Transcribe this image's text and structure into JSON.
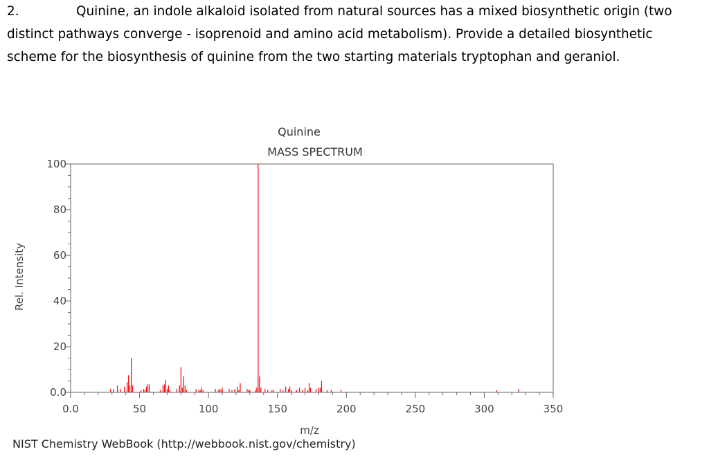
{
  "question": {
    "number": "2.",
    "line1": "Quinine, an indole alkaloid isolated from natural sources has a mixed biosynthetic origin (two",
    "line2": "distinct pathways converge - isoprenoid and amino acid metabolism). Provide a detailed biosynthetic",
    "line3": "scheme for the biosynthesis of quinine from the two starting materials tryptophan and geraniol."
  },
  "colors": {
    "peak": "#ff0000",
    "axis": "#666666"
  },
  "chart_data": {
    "type": "bar",
    "title": "Quinine",
    "subtitle": "MASS SPECTRUM",
    "xlabel": "m/z",
    "ylabel": "Rel. Intensity",
    "credit": "NIST Chemistry WebBook (http://webbook.nist.gov/chemistry)",
    "xlim": [
      0,
      350
    ],
    "ylim": [
      0,
      100
    ],
    "x_ticks": [
      "0.0",
      "50",
      "100",
      "150",
      "200",
      "250",
      "300",
      "350"
    ],
    "y_ticks": [
      "0.0",
      "20",
      "40",
      "60",
      "80",
      "100"
    ],
    "x_tick_values": [
      0,
      50,
      100,
      150,
      200,
      250,
      300,
      350
    ],
    "y_tick_values": [
      0,
      20,
      40,
      60,
      80,
      100
    ],
    "x": [
      29,
      31,
      34,
      36,
      39,
      41,
      42,
      43,
      44,
      45,
      51,
      53,
      54,
      55,
      56,
      57,
      65,
      67,
      68,
      69,
      70,
      71,
      72,
      77,
      79,
      80,
      81,
      82,
      83,
      84,
      91,
      93,
      94,
      95,
      96,
      105,
      107,
      108,
      109,
      110,
      115,
      117,
      119,
      121,
      122,
      123,
      128,
      129,
      130,
      134,
      135,
      136,
      137,
      138,
      141,
      143,
      146,
      147,
      152,
      154,
      156,
      158,
      159,
      160,
      164,
      166,
      168,
      170,
      172,
      173,
      174,
      178,
      180,
      181,
      182,
      186,
      189,
      196,
      309,
      325
    ],
    "values": [
      1.5,
      1.5,
      3.0,
      1.5,
      2.5,
      4.5,
      7.5,
      3.0,
      15.0,
      3.0,
      1.0,
      1.5,
      1.0,
      2.5,
      3.5,
      3.5,
      1.0,
      3.0,
      3.5,
      5.5,
      1.5,
      3.0,
      1.0,
      1.5,
      3.0,
      11.0,
      2.0,
      7.0,
      3.0,
      1.0,
      1.5,
      1.0,
      1.0,
      2.0,
      1.0,
      1.5,
      1.0,
      1.5,
      1.0,
      2.0,
      1.5,
      1.0,
      1.5,
      2.5,
      1.0,
      4.0,
      1.5,
      1.0,
      1.0,
      1.0,
      2.0,
      100.0,
      7.0,
      2.0,
      1.5,
      1.0,
      1.0,
      1.0,
      1.5,
      1.0,
      2.5,
      1.5,
      2.5,
      1.0,
      1.0,
      2.0,
      1.0,
      2.0,
      1.0,
      4.0,
      2.0,
      1.5,
      2.0,
      2.0,
      5.0,
      1.0,
      1.0,
      1.0,
      1.0,
      1.5
    ]
  }
}
